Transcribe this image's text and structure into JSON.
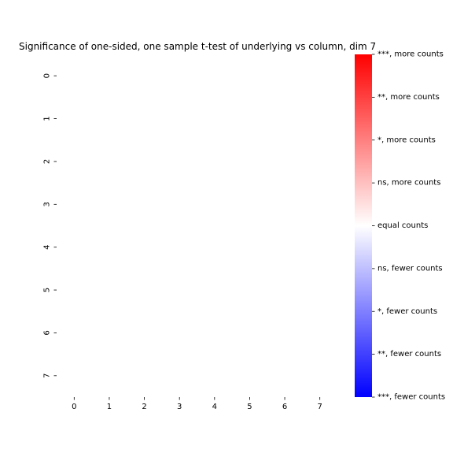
{
  "chart_data": {
    "type": "heatmap",
    "title": "Significance of one-sided, one sample t-test of underlying vs column, dim 7",
    "xlabel": "",
    "ylabel": "",
    "x_tick_labels": [
      "0",
      "1",
      "2",
      "3",
      "4",
      "5",
      "6",
      "7"
    ],
    "y_tick_labels": [
      "0",
      "1",
      "2",
      "3",
      "4",
      "5",
      "6",
      "7"
    ],
    "values": [
      [
        0,
        0,
        0,
        0,
        0,
        0,
        0,
        0
      ],
      [
        0,
        0,
        0,
        0,
        0,
        0,
        0,
        0
      ],
      [
        0,
        0,
        0,
        0,
        0,
        0,
        0,
        0
      ],
      [
        0,
        0,
        0,
        0,
        0,
        0,
        0,
        0
      ],
      [
        0,
        0,
        0,
        0,
        0,
        0,
        0,
        0
      ],
      [
        0,
        0,
        0,
        0,
        0,
        0,
        0,
        0
      ],
      [
        0,
        0,
        0,
        0,
        0,
        0,
        0,
        0
      ],
      [
        0,
        0,
        0,
        0,
        0,
        0,
        0,
        0
      ]
    ],
    "colorbar": {
      "range": [
        -4,
        4
      ],
      "colors": {
        "low": "#0000ff",
        "mid": "#ffffff",
        "high": "#ff0000"
      },
      "tick_labels": [
        "***, more counts",
        "**, more counts",
        "*, more counts",
        "ns, more counts",
        "equal counts",
        "ns, fewer counts",
        "*, fewer counts",
        "**, fewer counts",
        "***, fewer counts"
      ]
    }
  }
}
